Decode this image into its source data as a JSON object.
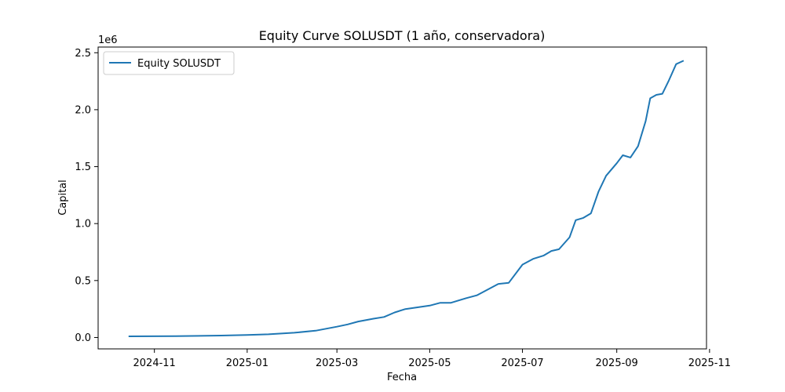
{
  "chart_data": {
    "type": "line",
    "title": "Equity Curve SOLUSDT (1 año, conservadora)",
    "xlabel": "Fecha",
    "ylabel": "Capital",
    "y_multiplier_label": "1e6",
    "xlim": [
      "2024-09-25",
      "2025-10-30"
    ],
    "ylim": [
      -0.1,
      2.55
    ],
    "x_ticks": [
      {
        "date": "2024-11-01",
        "label": "2024-11"
      },
      {
        "date": "2025-01-01",
        "label": "2025-01"
      },
      {
        "date": "2025-03-01",
        "label": "2025-03"
      },
      {
        "date": "2025-05-01",
        "label": "2025-05"
      },
      {
        "date": "2025-07-01",
        "label": "2025-07"
      },
      {
        "date": "2025-09-01",
        "label": "2025-09"
      },
      {
        "date": "2025-11-01",
        "label": "2025-11"
      }
    ],
    "y_ticks": [
      {
        "value": 0.0,
        "label": "0.0"
      },
      {
        "value": 0.5,
        "label": "0.5"
      },
      {
        "value": 1.0,
        "label": "1.0"
      },
      {
        "value": 1.5,
        "label": "1.5"
      },
      {
        "value": 2.0,
        "label": "2.0"
      },
      {
        "value": 2.5,
        "label": "2.5"
      }
    ],
    "grid": false,
    "legend": {
      "position": "top-left"
    },
    "series": [
      {
        "name": "Equity SOLUSDT",
        "color": "#1f77b4",
        "points": [
          [
            "2024-10-15",
            0.01
          ],
          [
            "2024-11-15",
            0.012
          ],
          [
            "2024-12-15",
            0.017
          ],
          [
            "2025-01-01",
            0.022
          ],
          [
            "2025-01-15",
            0.028
          ],
          [
            "2025-02-01",
            0.042
          ],
          [
            "2025-02-15",
            0.06
          ],
          [
            "2025-03-01",
            0.095
          ],
          [
            "2025-03-08",
            0.115
          ],
          [
            "2025-03-15",
            0.14
          ],
          [
            "2025-03-25",
            0.165
          ],
          [
            "2025-04-01",
            0.18
          ],
          [
            "2025-04-08",
            0.22
          ],
          [
            "2025-04-15",
            0.25
          ],
          [
            "2025-05-01",
            0.28
          ],
          [
            "2025-05-08",
            0.305
          ],
          [
            "2025-05-15",
            0.305
          ],
          [
            "2025-05-25",
            0.345
          ],
          [
            "2025-06-01",
            0.37
          ],
          [
            "2025-06-08",
            0.42
          ],
          [
            "2025-06-15",
            0.47
          ],
          [
            "2025-06-22",
            0.48
          ],
          [
            "2025-07-01",
            0.64
          ],
          [
            "2025-07-08",
            0.69
          ],
          [
            "2025-07-15",
            0.72
          ],
          [
            "2025-07-20",
            0.76
          ],
          [
            "2025-07-25",
            0.775
          ],
          [
            "2025-08-01",
            0.88
          ],
          [
            "2025-08-05",
            1.03
          ],
          [
            "2025-08-10",
            1.05
          ],
          [
            "2025-08-15",
            1.09
          ],
          [
            "2025-08-20",
            1.28
          ],
          [
            "2025-08-25",
            1.42
          ],
          [
            "2025-09-01",
            1.53
          ],
          [
            "2025-09-05",
            1.6
          ],
          [
            "2025-09-10",
            1.58
          ],
          [
            "2025-09-15",
            1.68
          ],
          [
            "2025-09-20",
            1.9
          ],
          [
            "2025-09-23",
            2.1
          ],
          [
            "2025-09-27",
            2.13
          ],
          [
            "2025-10-01",
            2.14
          ],
          [
            "2025-10-05",
            2.25
          ],
          [
            "2025-10-10",
            2.4
          ],
          [
            "2025-10-15",
            2.43
          ]
        ]
      }
    ]
  }
}
